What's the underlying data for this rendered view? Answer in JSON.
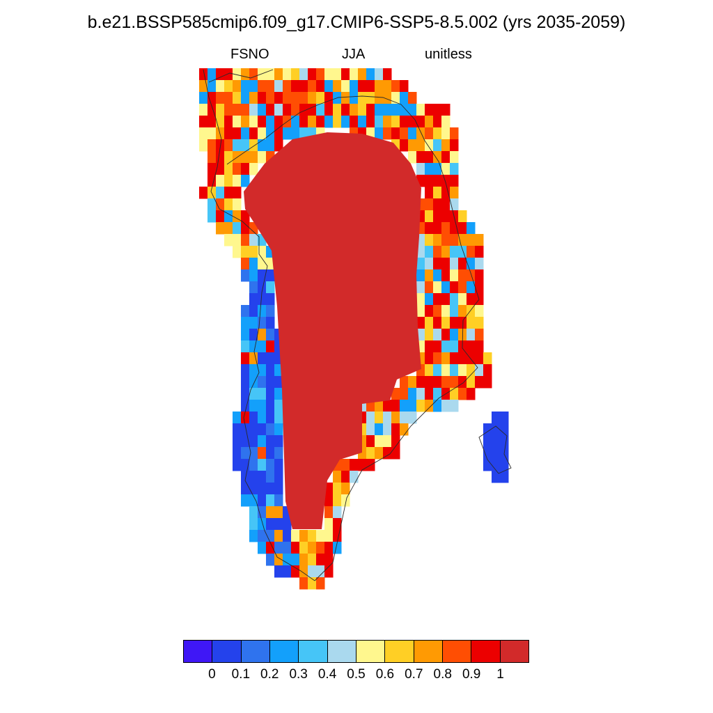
{
  "title": "b.e21.BSSP585cmip6.f09_g17.CMIP6-SSP5-8.5.002 (yrs 2035-2059)",
  "subtitle_left": "FSNO",
  "subtitle_center": "JJA",
  "subtitle_right": "unitless",
  "colorbar": {
    "colors": [
      "#3f17f6",
      "#2442ec",
      "#2f73ee",
      "#13a0fb",
      "#46c5f7",
      "#aad9ee",
      "#fff78e",
      "#ffcf25",
      "#ff9a03",
      "#ff4e03",
      "#ec0000",
      "#d22a2a"
    ],
    "labels": [
      "0",
      "0.1",
      "0.2",
      "0.3",
      "0.4",
      "0.5",
      "0.6",
      "0.7",
      "0.8",
      "0.9",
      "1"
    ]
  },
  "map_colors": {
    "interior": "#d22a2a",
    "coast": "#2a2a2a"
  }
}
